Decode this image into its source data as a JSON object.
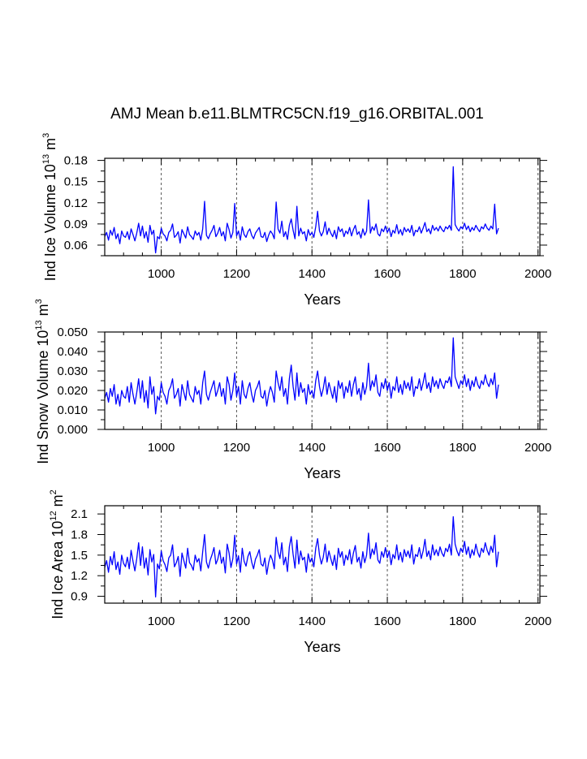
{
  "title": "AMJ Mean b.e11.BLMTRC5CN.f19_g16.ORBITAL.001",
  "colors": {
    "series": "#0000ff",
    "axes": "#000000",
    "grid": "#555555",
    "background": "#ffffff"
  },
  "chart_data": [
    {
      "type": "line",
      "panel": "ice-volume",
      "ylabel_parts": [
        "Ind Ice Volume 10",
        "13",
        " m",
        "3"
      ],
      "xlabel": "Years",
      "xlim": [
        850,
        2005
      ],
      "ylim": [
        0.045,
        0.183
      ],
      "xticks": [
        1000,
        1200,
        1400,
        1600,
        1800,
        2000
      ],
      "xtick_labels": [
        "1000",
        "1200",
        "1400",
        "1600",
        "1800",
        "2000"
      ],
      "yticks": [
        0.06,
        0.09,
        0.12,
        0.15,
        0.18
      ],
      "ytick_labels": [
        "0.06",
        "0.09",
        "0.12",
        "0.15",
        "0.18"
      ],
      "vgrid": [
        1000,
        1200,
        1400,
        1600,
        1800,
        2000
      ],
      "grid_style": "dashed vertical",
      "series": [
        {
          "name": "Ind Ice Volume",
          "x_start": 850,
          "x_step": 5,
          "values": [
            0.072,
            0.078,
            0.067,
            0.081,
            0.074,
            0.085,
            0.069,
            0.076,
            0.062,
            0.08,
            0.073,
            0.071,
            0.079,
            0.068,
            0.083,
            0.075,
            0.066,
            0.077,
            0.091,
            0.073,
            0.087,
            0.07,
            0.079,
            0.064,
            0.088,
            0.075,
            0.081,
            0.049,
            0.072,
            0.069,
            0.084,
            0.076,
            0.073,
            0.066,
            0.078,
            0.081,
            0.09,
            0.071,
            0.074,
            0.079,
            0.063,
            0.082,
            0.076,
            0.07,
            0.086,
            0.075,
            0.072,
            0.068,
            0.08,
            0.074,
            0.078,
            0.067,
            0.083,
            0.122,
            0.074,
            0.069,
            0.076,
            0.081,
            0.088,
            0.072,
            0.077,
            0.085,
            0.073,
            0.079,
            0.066,
            0.091,
            0.082,
            0.07,
            0.078,
            0.119,
            0.073,
            0.08,
            0.067,
            0.086,
            0.075,
            0.071,
            0.079,
            0.083,
            0.074,
            0.069,
            0.077,
            0.081,
            0.085,
            0.072,
            0.071,
            0.078,
            0.065,
            0.074,
            0.08,
            0.076,
            0.069,
            0.121,
            0.083,
            0.077,
            0.094,
            0.072,
            0.079,
            0.068,
            0.088,
            0.097,
            0.081,
            0.069,
            0.115,
            0.073,
            0.084,
            0.076,
            0.079,
            0.066,
            0.082,
            0.074,
            0.078,
            0.071,
            0.086,
            0.108,
            0.08,
            0.073,
            0.079,
            0.093,
            0.075,
            0.084,
            0.077,
            0.072,
            0.081,
            0.069,
            0.086,
            0.079,
            0.083,
            0.072,
            0.08,
            0.076,
            0.085,
            0.073,
            0.082,
            0.088,
            0.075,
            0.079,
            0.07,
            0.083,
            0.074,
            0.08,
            0.124,
            0.077,
            0.086,
            0.081,
            0.09,
            0.076,
            0.073,
            0.083,
            0.079,
            0.087,
            0.078,
            0.084,
            0.072,
            0.081,
            0.077,
            0.089,
            0.076,
            0.082,
            0.074,
            0.085,
            0.079,
            0.083,
            0.078,
            0.088,
            0.073,
            0.081,
            0.079,
            0.086,
            0.077,
            0.084,
            0.092,
            0.079,
            0.083,
            0.076,
            0.088,
            0.081,
            0.085,
            0.08,
            0.087,
            0.082,
            0.079,
            0.086,
            0.083,
            0.088,
            0.081,
            0.171,
            0.089,
            0.084,
            0.08,
            0.086,
            0.083,
            0.091,
            0.082,
            0.087,
            0.079,
            0.085,
            0.081,
            0.088,
            0.083,
            0.079,
            0.086,
            0.083,
            0.09,
            0.084,
            0.081,
            0.087,
            0.083,
            0.118,
            0.076,
            0.084
          ]
        }
      ]
    },
    {
      "type": "line",
      "panel": "snow-volume",
      "ylabel_parts": [
        "Ind Snow Volume 10",
        "13",
        " m",
        "3"
      ],
      "xlabel": "Years",
      "xlim": [
        850,
        2005
      ],
      "ylim": [
        0.0,
        0.05
      ],
      "xticks": [
        1000,
        1200,
        1400,
        1600,
        1800,
        2000
      ],
      "xtick_labels": [
        "1000",
        "1200",
        "1400",
        "1600",
        "1800",
        "2000"
      ],
      "yticks": [
        0.0,
        0.01,
        0.02,
        0.03,
        0.04,
        0.05
      ],
      "ytick_labels": [
        "0.000",
        "0.010",
        "0.020",
        "0.030",
        "0.040",
        "0.050"
      ],
      "vgrid": [
        1000,
        1200,
        1400,
        1600,
        1800,
        2000
      ],
      "grid_style": "dashed vertical",
      "series": [
        {
          "name": "Ind Snow Volume",
          "x_start": 850,
          "x_step": 5,
          "values": [
            0.016,
            0.019,
            0.014,
            0.021,
            0.017,
            0.023,
            0.013,
            0.018,
            0.012,
            0.02,
            0.017,
            0.016,
            0.022,
            0.014,
            0.024,
            0.018,
            0.013,
            0.019,
            0.026,
            0.016,
            0.025,
            0.014,
            0.02,
            0.011,
            0.027,
            0.018,
            0.022,
            0.008,
            0.017,
            0.015,
            0.024,
            0.019,
            0.017,
            0.013,
            0.02,
            0.022,
            0.026,
            0.016,
            0.018,
            0.021,
            0.012,
            0.023,
            0.019,
            0.015,
            0.025,
            0.018,
            0.016,
            0.014,
            0.022,
            0.018,
            0.02,
            0.013,
            0.024,
            0.03,
            0.018,
            0.015,
            0.019,
            0.022,
            0.025,
            0.017,
            0.02,
            0.024,
            0.017,
            0.021,
            0.013,
            0.027,
            0.023,
            0.015,
            0.02,
            0.029,
            0.017,
            0.022,
            0.013,
            0.025,
            0.018,
            0.016,
            0.021,
            0.024,
            0.018,
            0.014,
            0.02,
            0.022,
            0.025,
            0.017,
            0.016,
            0.02,
            0.012,
            0.018,
            0.022,
            0.019,
            0.014,
            0.03,
            0.024,
            0.02,
            0.027,
            0.017,
            0.021,
            0.013,
            0.026,
            0.033,
            0.022,
            0.015,
            0.029,
            0.017,
            0.024,
            0.019,
            0.021,
            0.013,
            0.023,
            0.018,
            0.02,
            0.016,
            0.025,
            0.03,
            0.022,
            0.017,
            0.021,
            0.027,
            0.018,
            0.024,
            0.02,
            0.016,
            0.022,
            0.014,
            0.025,
            0.021,
            0.024,
            0.016,
            0.022,
            0.019,
            0.025,
            0.017,
            0.023,
            0.027,
            0.018,
            0.021,
            0.015,
            0.024,
            0.018,
            0.022,
            0.034,
            0.02,
            0.025,
            0.022,
            0.028,
            0.019,
            0.017,
            0.024,
            0.021,
            0.026,
            0.02,
            0.024,
            0.016,
            0.022,
            0.02,
            0.027,
            0.019,
            0.023,
            0.018,
            0.025,
            0.021,
            0.024,
            0.02,
            0.027,
            0.017,
            0.022,
            0.021,
            0.026,
            0.02,
            0.024,
            0.029,
            0.021,
            0.024,
            0.019,
            0.027,
            0.022,
            0.025,
            0.021,
            0.026,
            0.023,
            0.021,
            0.025,
            0.024,
            0.027,
            0.022,
            0.047,
            0.027,
            0.024,
            0.021,
            0.025,
            0.023,
            0.028,
            0.022,
            0.026,
            0.02,
            0.025,
            0.022,
            0.027,
            0.023,
            0.021,
            0.025,
            0.023,
            0.028,
            0.024,
            0.022,
            0.026,
            0.023,
            0.029,
            0.016,
            0.023
          ]
        }
      ]
    },
    {
      "type": "line",
      "panel": "ice-area",
      "ylabel_parts": [
        "Ind Ice Area 10",
        "12",
        " m",
        "2"
      ],
      "xlabel": "Years",
      "xlim": [
        850,
        2005
      ],
      "ylim": [
        0.8,
        2.22
      ],
      "xticks": [
        1000,
        1200,
        1400,
        1600,
        1800,
        2000
      ],
      "xtick_labels": [
        "1000",
        "1200",
        "1400",
        "1600",
        "1800",
        "2000"
      ],
      "yticks": [
        0.9,
        1.2,
        1.5,
        1.8,
        2.1
      ],
      "ytick_labels": [
        "0.9",
        "1.2",
        "1.5",
        "1.8",
        "2.1"
      ],
      "vgrid": [
        1000,
        1200,
        1400,
        1600,
        1800,
        2000
      ],
      "grid_style": "dashed vertical",
      "series": [
        {
          "name": "Ind Ice Area",
          "x_start": 850,
          "x_step": 5,
          "values": [
            1.32,
            1.42,
            1.25,
            1.48,
            1.36,
            1.55,
            1.29,
            1.4,
            1.22,
            1.5,
            1.38,
            1.33,
            1.47,
            1.3,
            1.57,
            1.41,
            1.27,
            1.45,
            1.68,
            1.35,
            1.62,
            1.31,
            1.46,
            1.21,
            1.58,
            1.4,
            1.51,
            0.89,
            1.37,
            1.3,
            1.56,
            1.42,
            1.36,
            1.26,
            1.46,
            1.5,
            1.65,
            1.33,
            1.39,
            1.48,
            1.19,
            1.53,
            1.42,
            1.31,
            1.6,
            1.39,
            1.35,
            1.28,
            1.5,
            1.4,
            1.45,
            1.27,
            1.55,
            1.8,
            1.4,
            1.31,
            1.43,
            1.51,
            1.61,
            1.37,
            1.44,
            1.57,
            1.38,
            1.47,
            1.24,
            1.66,
            1.53,
            1.32,
            1.45,
            1.79,
            1.37,
            1.49,
            1.25,
            1.6,
            1.41,
            1.34,
            1.48,
            1.55,
            1.4,
            1.3,
            1.44,
            1.5,
            1.58,
            1.37,
            1.34,
            1.46,
            1.22,
            1.39,
            1.5,
            1.43,
            1.3,
            1.76,
            1.55,
            1.45,
            1.68,
            1.36,
            1.47,
            1.26,
            1.62,
            1.77,
            1.51,
            1.31,
            1.72,
            1.37,
            1.56,
            1.43,
            1.47,
            1.25,
            1.52,
            1.4,
            1.46,
            1.33,
            1.6,
            1.74,
            1.5,
            1.37,
            1.47,
            1.66,
            1.4,
            1.56,
            1.45,
            1.35,
            1.5,
            1.29,
            1.6,
            1.47,
            1.55,
            1.35,
            1.5,
            1.43,
            1.58,
            1.37,
            1.53,
            1.64,
            1.4,
            1.47,
            1.31,
            1.55,
            1.39,
            1.5,
            1.82,
            1.45,
            1.59,
            1.51,
            1.68,
            1.43,
            1.38,
            1.55,
            1.47,
            1.61,
            1.46,
            1.56,
            1.36,
            1.51,
            1.45,
            1.65,
            1.43,
            1.54,
            1.4,
            1.58,
            1.48,
            1.56,
            1.46,
            1.65,
            1.37,
            1.51,
            1.48,
            1.61,
            1.45,
            1.56,
            1.73,
            1.48,
            1.56,
            1.43,
            1.65,
            1.5,
            1.58,
            1.49,
            1.62,
            1.53,
            1.48,
            1.6,
            1.55,
            1.66,
            1.5,
            2.06,
            1.66,
            1.56,
            1.49,
            1.6,
            1.54,
            1.7,
            1.51,
            1.62,
            1.46,
            1.58,
            1.5,
            1.66,
            1.54,
            1.47,
            1.6,
            1.54,
            1.68,
            1.57,
            1.5,
            1.63,
            1.54,
            1.79,
            1.33,
            1.55
          ]
        }
      ]
    }
  ]
}
